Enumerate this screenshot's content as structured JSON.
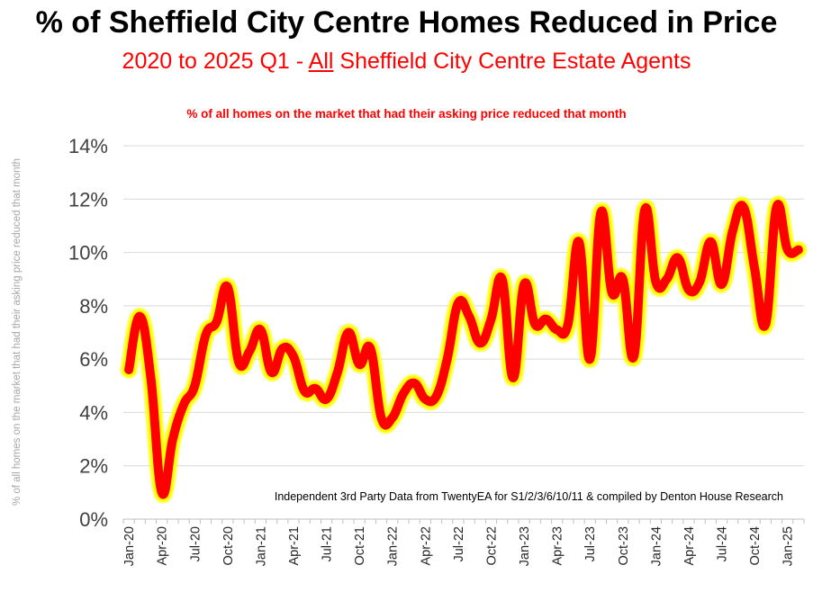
{
  "title": "% of Sheffield City Centre Homes Reduced in Price",
  "subtitle": {
    "before": "2020 to 2025 Q1 - ",
    "underlined": "All",
    "after": " Sheffield City Centre Estate Agents"
  },
  "colors": {
    "line": "#ff0000",
    "glow": "#ffff00",
    "title": "#000000",
    "subtitle": "#ff0000",
    "axis_text": "#404040",
    "grid": "#d9d9d9"
  },
  "chart_data": {
    "type": "line",
    "title": "% of all homes on the market that had their asking price reduced that month",
    "ylabel": "% of all homes on the market that had their asking price reduced that month",
    "xlabel": "",
    "annotation": "Independent 3rd Party Data from TwentyEA for S1/2/3/6/10/11 & compiled by Denton House Research",
    "ylim": [
      0,
      14
    ],
    "yticks": [
      "0%",
      "2%",
      "4%",
      "6%",
      "8%",
      "10%",
      "12%",
      "14%"
    ],
    "xticks": [
      "Jan-20",
      "Apr-20",
      "Jul-20",
      "Oct-20",
      "Jan-21",
      "Apr-21",
      "Jul-21",
      "Oct-21",
      "Jan-22",
      "Apr-22",
      "Jul-22",
      "Oct-22",
      "Jan-23",
      "Apr-23",
      "Jul-23",
      "Oct-23",
      "Jan-24",
      "Apr-24",
      "Jul-24",
      "Oct-24",
      "Jan-25"
    ],
    "grid": true,
    "legend": "none",
    "series": [
      {
        "values": [
          5.6,
          7.6,
          5.3,
          1.0,
          3.0,
          4.3,
          5.0,
          6.9,
          7.4,
          8.7,
          5.9,
          6.3,
          7.1,
          5.5,
          6.4,
          6.1,
          4.8,
          4.9,
          4.5,
          5.5,
          7.0,
          5.8,
          6.4,
          3.8,
          3.8,
          4.7,
          5.1,
          4.5,
          4.6,
          6.0,
          8.1,
          7.6,
          6.6,
          7.5,
          9.0,
          5.3,
          8.8,
          7.3,
          7.5,
          7.1,
          7.3,
          10.4,
          6.0,
          11.5,
          8.5,
          9.0,
          6.1,
          11.6,
          8.9,
          9.0,
          9.8,
          8.6,
          8.9,
          10.4,
          8.8,
          10.8,
          11.7,
          9.4,
          7.3,
          11.7,
          10.1,
          10.1
        ]
      }
    ]
  }
}
